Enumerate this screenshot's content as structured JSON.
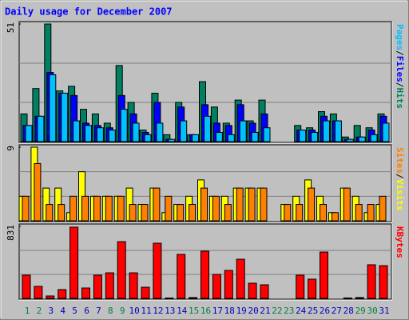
{
  "chart_data": {
    "type": "bar",
    "title": "Daily usage for December 2007",
    "separator": "/",
    "categories": [
      "1",
      "2",
      "3",
      "4",
      "5",
      "6",
      "7",
      "8",
      "9",
      "10",
      "11",
      "12",
      "13",
      "14",
      "15",
      "16",
      "17",
      "18",
      "19",
      "20",
      "21",
      "22",
      "23",
      "24",
      "25",
      "26",
      "27",
      "28",
      "29",
      "30",
      "31"
    ],
    "category_colors": [
      "#008040",
      "#008040",
      "#0000c0",
      "#0000c0",
      "#0000c0",
      "#0000c0",
      "#0000c0",
      "#008040",
      "#008040",
      "#0000c0",
      "#0000c0",
      "#0000c0",
      "#0000c0",
      "#0000c0",
      "#008040",
      "#008040",
      "#0000c0",
      "#0000c0",
      "#0000c0",
      "#0000c0",
      "#0000c0",
      "#008040",
      "#008040",
      "#0000c0",
      "#0000c0",
      "#0000c0",
      "#0000c0",
      "#0000c0",
      "#008040",
      "#008040",
      "#0000c0"
    ],
    "panels": [
      {
        "ylim": [
          0,
          51
        ],
        "yticks": [
          51
        ],
        "series": [
          {
            "name": "Hits",
            "color": "#008060",
            "values": [
              12,
              23,
              51,
              22,
              24,
              14,
              12,
              8,
              33,
              17,
              5,
              21,
              3,
              17,
              3,
              26,
              15,
              8,
              18,
              9,
              18,
              0,
              0,
              7,
              6,
              13,
              12,
              2,
              7,
              6,
              12
            ]
          },
          {
            "name": "Files",
            "color": "#0000ff",
            "values": [
              7,
              11,
              30,
              21,
              20,
              8,
              7,
              6,
              20,
              12,
              4,
              17,
              1,
              15,
              3,
              16,
              8,
              7,
              16,
              8,
              12,
              0,
              0,
              5,
              5,
              11,
              9,
              1,
              2,
              5,
              11
            ]
          },
          {
            "name": "Pages",
            "color": "#00c0ff",
            "values": [
              7,
              11,
              29,
              21,
              9,
              7,
              6,
              5,
              14,
              8,
              3,
              8,
              1,
              9,
              3,
              11,
              4,
              3,
              9,
              4,
              6,
              0,
              0,
              5,
              4,
              9,
              9,
              1,
              2,
              3,
              8
            ]
          }
        ]
      },
      {
        "ylim": [
          0,
          9
        ],
        "yticks": [
          9
        ],
        "series": [
          {
            "name": "Visits",
            "color": "#ffff00",
            "values": [
              3,
              9,
              4,
              4,
              1,
              6,
              3,
              3,
              3,
              4,
              2,
              4,
              1,
              2,
              3,
              5,
              3,
              3,
              4,
              4,
              4,
              0,
              2,
              3,
              5,
              3,
              1,
              4,
              3,
              1,
              2
            ]
          },
          {
            "name": "Sites",
            "color": "#ff8000",
            "values": [
              3,
              7,
              2,
              2,
              3,
              3,
              3,
              3,
              3,
              2,
              2,
              4,
              3,
              2,
              2,
              4,
              3,
              2,
              4,
              4,
              4,
              0,
              2,
              2,
              4,
              2,
              1,
              4,
              2,
              2,
              3
            ]
          }
        ]
      },
      {
        "ylim": [
          0,
          831
        ],
        "yticks": [
          831
        ],
        "series": [
          {
            "name": "KBytes",
            "color": "#ff0000",
            "values": [
              268,
              139,
              28,
              102,
              822,
              120,
              268,
              295,
              655,
              295,
              129,
              637,
              5,
              508,
              10,
              545,
              277,
              323,
              452,
              175,
              157,
              0,
              0,
              268,
              222,
              535,
              0,
              5,
              10,
              388,
              378
            ]
          }
        ]
      }
    ]
  }
}
